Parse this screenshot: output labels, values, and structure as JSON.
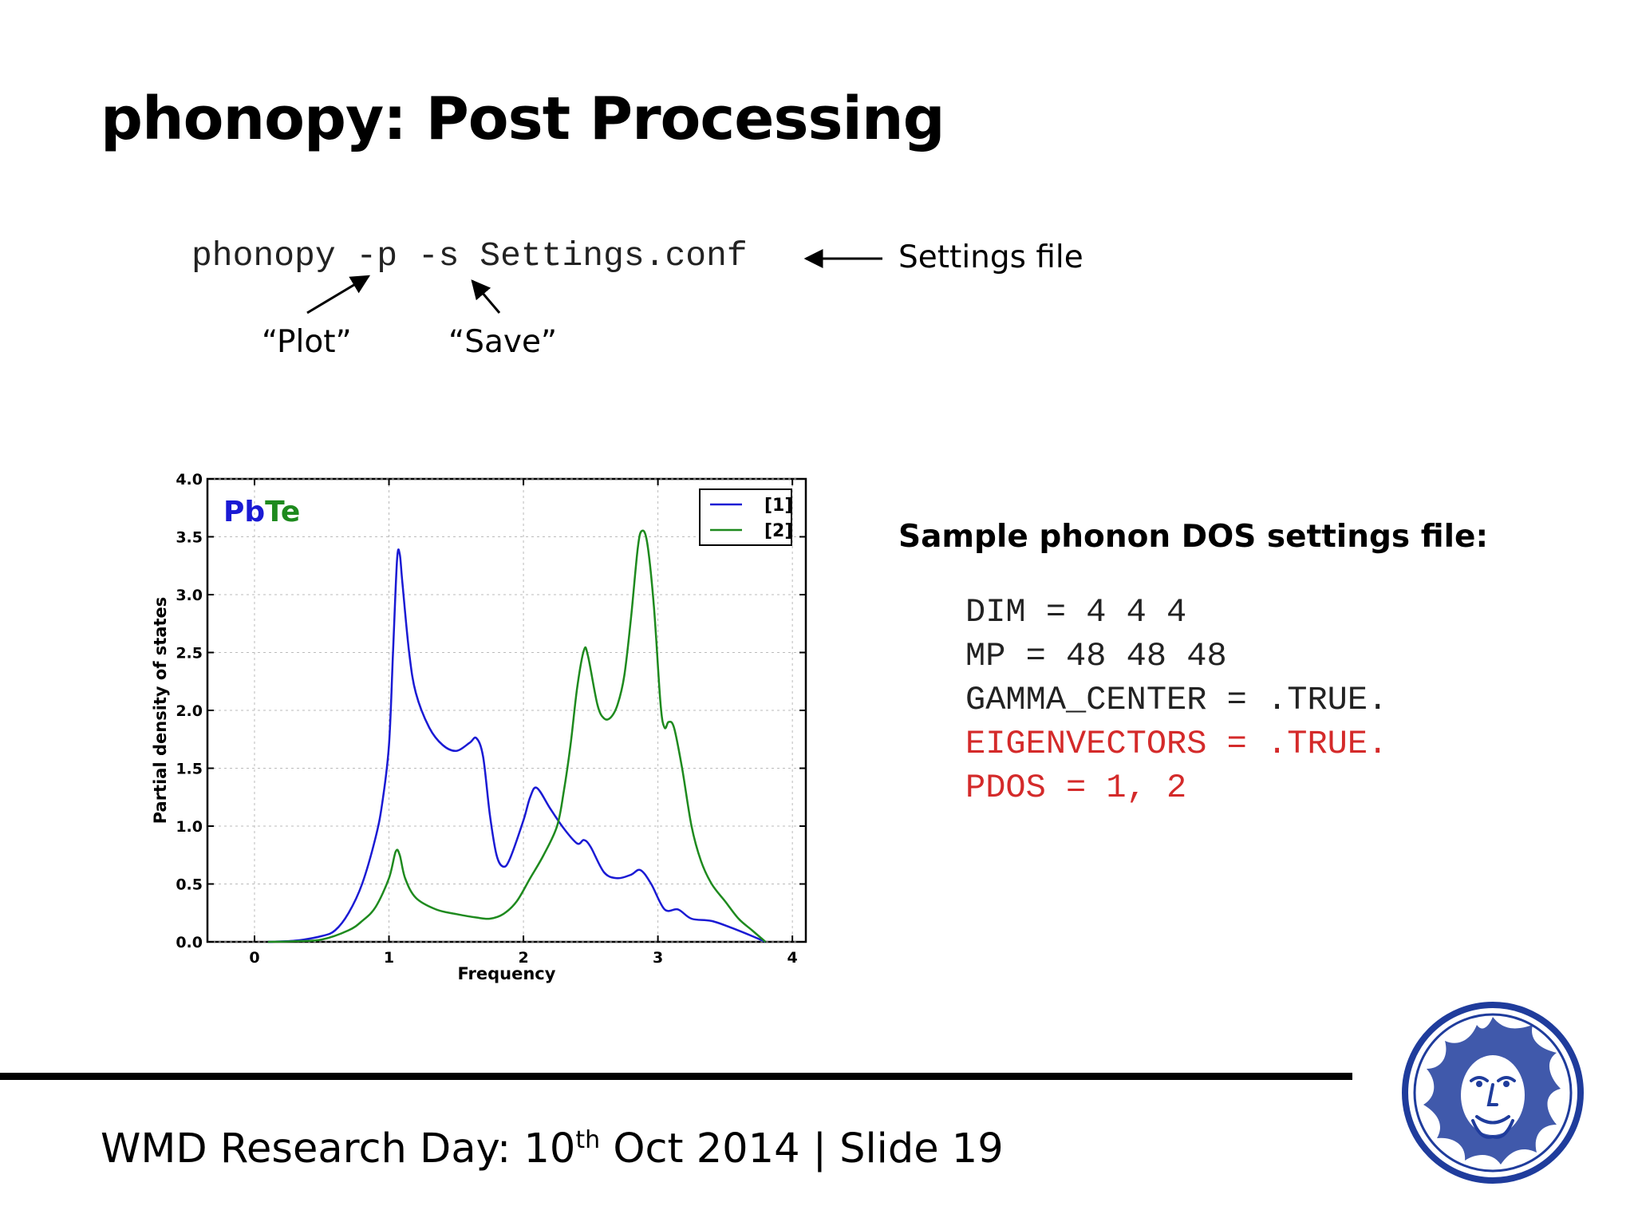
{
  "title": "phonopy: Post Processing",
  "command": {
    "text": "phonopy -p -s Settings.conf",
    "annotations": {
      "settings": "Settings file",
      "plot": "“Plot”",
      "save": "“Save”"
    }
  },
  "settings_file": {
    "heading": "Sample phonon DOS settings file:",
    "lines": [
      "DIM = 4 4 4",
      "MP = 48 48 48",
      "GAMMA_CENTER = .TRUE.",
      "EIGENVECTORS = .TRUE.",
      "PDOS = 1, 2"
    ],
    "highlight_color": "#d42a2a"
  },
  "footer": {
    "prefix": "WMD Research Day: 10",
    "superscript": "th",
    "suffix": " Oct 2014 | Slide 19"
  },
  "logo": {
    "icon": "university-seal-icon",
    "color": "#1f3c9c"
  },
  "chart_data": {
    "type": "line",
    "annotation": {
      "part1": "Pb",
      "part2": "Te",
      "color1": "#1a1ad4",
      "color2": "#1e8a1e"
    },
    "xlabel": "Frequency",
    "ylabel": "Partial density of states",
    "xlim": [
      -0.35,
      4.1
    ],
    "ylim": [
      0,
      4.0
    ],
    "xticks": [
      "0",
      "1",
      "2",
      "3",
      "4"
    ],
    "yticks": [
      "0.0",
      "0.5",
      "1.0",
      "1.5",
      "2.0",
      "2.5",
      "3.0",
      "3.5",
      "4.0"
    ],
    "grid": true,
    "legend": "top-right",
    "series": [
      {
        "name": "[1]",
        "color": "#1a1ad4",
        "points": [
          [
            0.1,
            0
          ],
          [
            0.3,
            0.01
          ],
          [
            0.5,
            0.05
          ],
          [
            0.6,
            0.1
          ],
          [
            0.7,
            0.25
          ],
          [
            0.8,
            0.5
          ],
          [
            0.9,
            0.9
          ],
          [
            0.95,
            1.2
          ],
          [
            1.0,
            1.7
          ],
          [
            1.03,
            2.5
          ],
          [
            1.06,
            3.3
          ],
          [
            1.08,
            3.35
          ],
          [
            1.1,
            3.1
          ],
          [
            1.15,
            2.5
          ],
          [
            1.2,
            2.15
          ],
          [
            1.3,
            1.85
          ],
          [
            1.4,
            1.7
          ],
          [
            1.5,
            1.65
          ],
          [
            1.6,
            1.72
          ],
          [
            1.65,
            1.76
          ],
          [
            1.7,
            1.6
          ],
          [
            1.75,
            1.1
          ],
          [
            1.8,
            0.75
          ],
          [
            1.85,
            0.65
          ],
          [
            1.9,
            0.72
          ],
          [
            2.0,
            1.05
          ],
          [
            2.05,
            1.25
          ],
          [
            2.1,
            1.33
          ],
          [
            2.2,
            1.15
          ],
          [
            2.3,
            0.98
          ],
          [
            2.4,
            0.85
          ],
          [
            2.45,
            0.88
          ],
          [
            2.5,
            0.82
          ],
          [
            2.6,
            0.6
          ],
          [
            2.7,
            0.55
          ],
          [
            2.8,
            0.58
          ],
          [
            2.87,
            0.62
          ],
          [
            2.95,
            0.5
          ],
          [
            3.05,
            0.28
          ],
          [
            3.15,
            0.28
          ],
          [
            3.25,
            0.2
          ],
          [
            3.4,
            0.18
          ],
          [
            3.55,
            0.12
          ],
          [
            3.7,
            0.05
          ],
          [
            3.8,
            0
          ]
        ]
      },
      {
        "name": "[2]",
        "color": "#1e8a1e",
        "points": [
          [
            0.1,
            0
          ],
          [
            0.3,
            0.005
          ],
          [
            0.5,
            0.02
          ],
          [
            0.7,
            0.1
          ],
          [
            0.8,
            0.18
          ],
          [
            0.9,
            0.3
          ],
          [
            1.0,
            0.55
          ],
          [
            1.05,
            0.78
          ],
          [
            1.08,
            0.75
          ],
          [
            1.12,
            0.55
          ],
          [
            1.2,
            0.38
          ],
          [
            1.35,
            0.28
          ],
          [
            1.5,
            0.24
          ],
          [
            1.65,
            0.21
          ],
          [
            1.75,
            0.2
          ],
          [
            1.85,
            0.24
          ],
          [
            1.95,
            0.35
          ],
          [
            2.05,
            0.55
          ],
          [
            2.15,
            0.75
          ],
          [
            2.25,
            1.0
          ],
          [
            2.3,
            1.3
          ],
          [
            2.35,
            1.7
          ],
          [
            2.4,
            2.2
          ],
          [
            2.45,
            2.52
          ],
          [
            2.48,
            2.47
          ],
          [
            2.55,
            2.05
          ],
          [
            2.6,
            1.93
          ],
          [
            2.65,
            1.94
          ],
          [
            2.7,
            2.05
          ],
          [
            2.75,
            2.3
          ],
          [
            2.8,
            2.8
          ],
          [
            2.85,
            3.4
          ],
          [
            2.88,
            3.55
          ],
          [
            2.92,
            3.45
          ],
          [
            2.97,
            2.9
          ],
          [
            3.02,
            2.05
          ],
          [
            3.05,
            1.85
          ],
          [
            3.08,
            1.9
          ],
          [
            3.12,
            1.85
          ],
          [
            3.18,
            1.5
          ],
          [
            3.25,
            1.0
          ],
          [
            3.32,
            0.7
          ],
          [
            3.4,
            0.5
          ],
          [
            3.5,
            0.35
          ],
          [
            3.6,
            0.2
          ],
          [
            3.7,
            0.1
          ],
          [
            3.8,
            0
          ]
        ]
      }
    ]
  }
}
